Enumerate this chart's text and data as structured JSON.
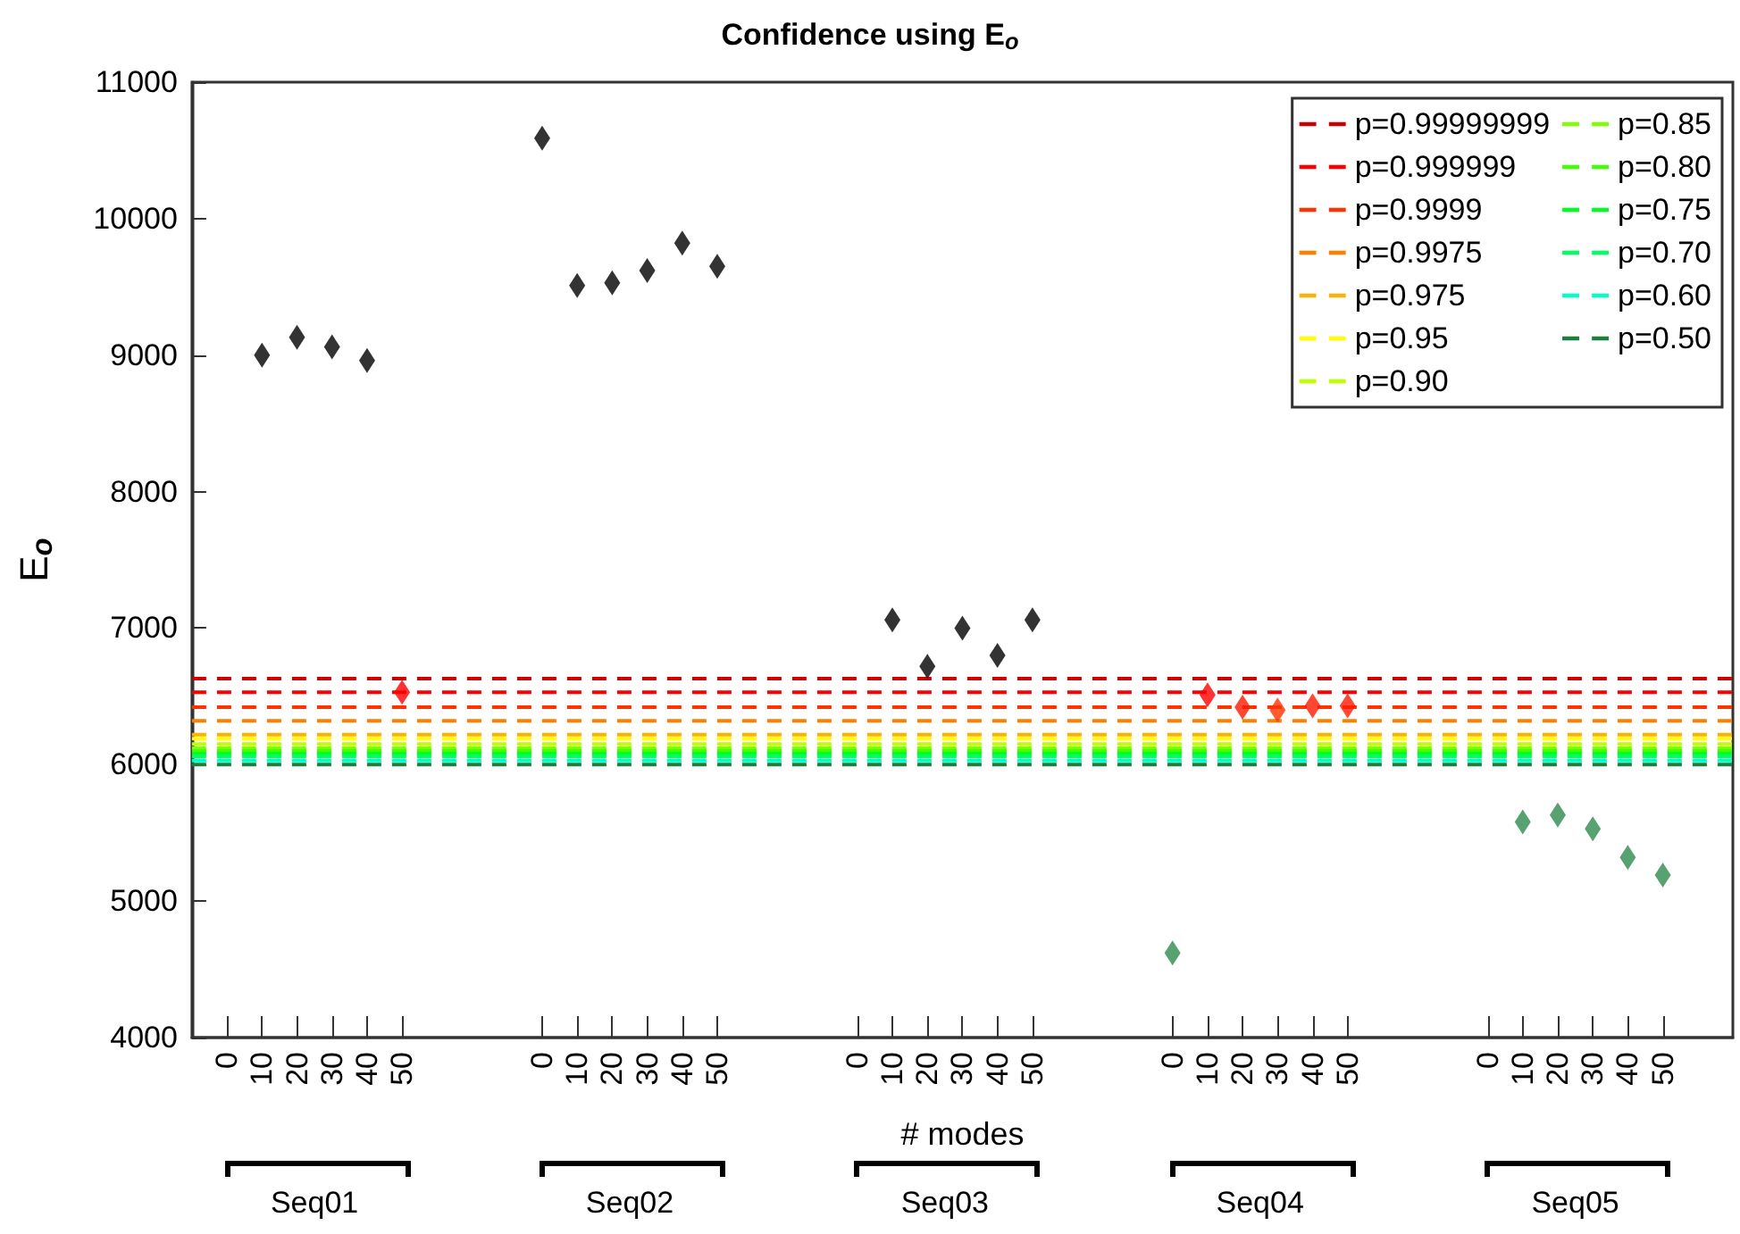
{
  "chart_data": {
    "type": "scatter",
    "title": "Confidence using E$_{o}$",
    "xlabel": "# modes",
    "ylabel": "E$_{o}$",
    "categories": [
      null,
      "0",
      "10",
      "20",
      "30",
      "40",
      "50",
      null,
      null,
      null,
      "0",
      "10",
      "20",
      "30",
      "40",
      "50",
      null,
      null,
      null,
      "0",
      "10",
      "20",
      "30",
      "40",
      "50",
      null,
      null,
      null,
      "0",
      "10",
      "20",
      "30",
      "40",
      "50",
      null,
      null,
      null,
      "0",
      "10",
      "20",
      "30",
      "40",
      "50",
      null,
      null
    ],
    "series": [
      {
        "marker": "diamond",
        "values": [
          null,
          null,
          9000,
          9130,
          9060,
          8960,
          6530,
          null,
          null,
          null,
          10590,
          9510,
          9530,
          9620,
          9820,
          9650,
          null,
          null,
          null,
          null,
          7060,
          6720,
          7000,
          6800,
          7060,
          null,
          null,
          null,
          4620,
          6510,
          6420,
          6400,
          6430,
          6430,
          null,
          null,
          null,
          null,
          5580,
          5630,
          5530,
          5320,
          5190,
          null,
          null
        ],
        "colors": [
          null,
          null,
          "#000000",
          "#000000",
          "#000000",
          "#000000",
          "#ff0000",
          null,
          null,
          null,
          "#000000",
          "#000000",
          "#000000",
          "#000000",
          "#000000",
          "#000000",
          null,
          null,
          null,
          null,
          "#000000",
          "#000000",
          "#000000",
          "#000000",
          "#000000",
          null,
          null,
          null,
          "#2e8b4e",
          "#ff0000",
          "#ff1a00",
          "#ff3300",
          "#ff1a00",
          "#ff1a00",
          null,
          null,
          null,
          null,
          "#2e8b4e",
          "#2e8b4e",
          "#2e8b4e",
          "#2e8b4e",
          "#2e8b4e",
          null,
          null
        ]
      },
      {
        "type": "line",
        "name": "p=0.99999999",
        "color": "#cc0000",
        "values": [
          6630,
          6630,
          6630,
          6630,
          6630,
          6630,
          6630,
          6630,
          6630,
          6630,
          6630,
          6630,
          6630,
          6630,
          6630,
          6630,
          6630,
          6630,
          6630,
          6630,
          6630,
          6630,
          6630,
          6630,
          6630,
          6630,
          6630,
          6630,
          6630,
          6630,
          6630,
          6630,
          6630,
          6630,
          6630,
          6630,
          6630,
          6630,
          6630,
          6630,
          6630,
          6630,
          6630,
          6630,
          6630
        ]
      },
      {
        "type": "line",
        "name": "p=0.999999",
        "color": "#ff0000",
        "values": [
          6530,
          6530,
          6530,
          6530,
          6530,
          6530,
          6530,
          6530,
          6530,
          6530,
          6530,
          6530,
          6530,
          6530,
          6530,
          6530,
          6530,
          6530,
          6530,
          6530,
          6530,
          6530,
          6530,
          6530,
          6530,
          6530,
          6530,
          6530,
          6530,
          6530,
          6530,
          6530,
          6530,
          6530,
          6530,
          6530,
          6530,
          6530,
          6530,
          6530,
          6530,
          6530,
          6530,
          6530,
          6530
        ]
      },
      {
        "type": "line",
        "name": "p=0.9999",
        "color": "#ff3300",
        "values": [
          6420,
          6420,
          6420,
          6420,
          6420,
          6420,
          6420,
          6420,
          6420,
          6420,
          6420,
          6420,
          6420,
          6420,
          6420,
          6420,
          6420,
          6420,
          6420,
          6420,
          6420,
          6420,
          6420,
          6420,
          6420,
          6420,
          6420,
          6420,
          6420,
          6420,
          6420,
          6420,
          6420,
          6420,
          6420,
          6420,
          6420,
          6420,
          6420,
          6420,
          6420,
          6420,
          6420,
          6420,
          6420
        ]
      },
      {
        "type": "line",
        "name": "p=0.9975",
        "color": "#ff8000",
        "values": [
          6320,
          6320,
          6320,
          6320,
          6320,
          6320,
          6320,
          6320,
          6320,
          6320,
          6320,
          6320,
          6320,
          6320,
          6320,
          6320,
          6320,
          6320,
          6320,
          6320,
          6320,
          6320,
          6320,
          6320,
          6320,
          6320,
          6320,
          6320,
          6320,
          6320,
          6320,
          6320,
          6320,
          6320,
          6320,
          6320,
          6320,
          6320,
          6320,
          6320,
          6320,
          6320,
          6320,
          6320,
          6320
        ]
      },
      {
        "type": "line",
        "name": "p=0.975",
        "color": "#ffb000",
        "values": [
          6220,
          6220,
          6220,
          6220,
          6220,
          6220,
          6220,
          6220,
          6220,
          6220,
          6220,
          6220,
          6220,
          6220,
          6220,
          6220,
          6220,
          6220,
          6220,
          6220,
          6220,
          6220,
          6220,
          6220,
          6220,
          6220,
          6220,
          6220,
          6220,
          6220,
          6220,
          6220,
          6220,
          6220,
          6220,
          6220,
          6220,
          6220,
          6220,
          6220,
          6220,
          6220,
          6220,
          6220,
          6220
        ]
      },
      {
        "type": "line",
        "name": "p=0.95",
        "color": "#ffff00",
        "values": [
          6190,
          6190,
          6190,
          6190,
          6190,
          6190,
          6190,
          6190,
          6190,
          6190,
          6190,
          6190,
          6190,
          6190,
          6190,
          6190,
          6190,
          6190,
          6190,
          6190,
          6190,
          6190,
          6190,
          6190,
          6190,
          6190,
          6190,
          6190,
          6190,
          6190,
          6190,
          6190,
          6190,
          6190,
          6190,
          6190,
          6190,
          6190,
          6190,
          6190,
          6190,
          6190,
          6190,
          6190,
          6190
        ]
      },
      {
        "type": "line",
        "name": "p=0.90",
        "color": "#bfff00",
        "values": [
          6150,
          6150,
          6150,
          6150,
          6150,
          6150,
          6150,
          6150,
          6150,
          6150,
          6150,
          6150,
          6150,
          6150,
          6150,
          6150,
          6150,
          6150,
          6150,
          6150,
          6150,
          6150,
          6150,
          6150,
          6150,
          6150,
          6150,
          6150,
          6150,
          6150,
          6150,
          6150,
          6150,
          6150,
          6150,
          6150,
          6150,
          6150,
          6150,
          6150,
          6150,
          6150,
          6150,
          6150,
          6150
        ]
      },
      {
        "type": "line",
        "name": "p=0.85",
        "color": "#80ff00",
        "values": [
          6120,
          6120,
          6120,
          6120,
          6120,
          6120,
          6120,
          6120,
          6120,
          6120,
          6120,
          6120,
          6120,
          6120,
          6120,
          6120,
          6120,
          6120,
          6120,
          6120,
          6120,
          6120,
          6120,
          6120,
          6120,
          6120,
          6120,
          6120,
          6120,
          6120,
          6120,
          6120,
          6120,
          6120,
          6120,
          6120,
          6120,
          6120,
          6120,
          6120,
          6120,
          6120,
          6120,
          6120,
          6120
        ]
      },
      {
        "type": "line",
        "name": "p=0.80",
        "color": "#40ff00",
        "values": [
          6100,
          6100,
          6100,
          6100,
          6100,
          6100,
          6100,
          6100,
          6100,
          6100,
          6100,
          6100,
          6100,
          6100,
          6100,
          6100,
          6100,
          6100,
          6100,
          6100,
          6100,
          6100,
          6100,
          6100,
          6100,
          6100,
          6100,
          6100,
          6100,
          6100,
          6100,
          6100,
          6100,
          6100,
          6100,
          6100,
          6100,
          6100,
          6100,
          6100,
          6100,
          6100,
          6100,
          6100,
          6100
        ]
      },
      {
        "type": "line",
        "name": "p=0.75",
        "color": "#00ff20",
        "values": [
          6080,
          6080,
          6080,
          6080,
          6080,
          6080,
          6080,
          6080,
          6080,
          6080,
          6080,
          6080,
          6080,
          6080,
          6080,
          6080,
          6080,
          6080,
          6080,
          6080,
          6080,
          6080,
          6080,
          6080,
          6080,
          6080,
          6080,
          6080,
          6080,
          6080,
          6080,
          6080,
          6080,
          6080,
          6080,
          6080,
          6080,
          6080,
          6080,
          6080,
          6080,
          6080,
          6080,
          6080,
          6080
        ]
      },
      {
        "type": "line",
        "name": "p=0.70",
        "color": "#00ff60",
        "values": [
          6060,
          6060,
          6060,
          6060,
          6060,
          6060,
          6060,
          6060,
          6060,
          6060,
          6060,
          6060,
          6060,
          6060,
          6060,
          6060,
          6060,
          6060,
          6060,
          6060,
          6060,
          6060,
          6060,
          6060,
          6060,
          6060,
          6060,
          6060,
          6060,
          6060,
          6060,
          6060,
          6060,
          6060,
          6060,
          6060,
          6060,
          6060,
          6060,
          6060,
          6060,
          6060,
          6060,
          6060,
          6060
        ]
      },
      {
        "type": "line",
        "name": "p=0.60",
        "color": "#00ffc0",
        "values": [
          6030,
          6030,
          6030,
          6030,
          6030,
          6030,
          6030,
          6030,
          6030,
          6030,
          6030,
          6030,
          6030,
          6030,
          6030,
          6030,
          6030,
          6030,
          6030,
          6030,
          6030,
          6030,
          6030,
          6030,
          6030,
          6030,
          6030,
          6030,
          6030,
          6030,
          6030,
          6030,
          6030,
          6030,
          6030,
          6030,
          6030,
          6030,
          6030,
          6030,
          6030,
          6030,
          6030,
          6030,
          6030
        ]
      },
      {
        "type": "line",
        "name": "p=0.50",
        "color": "#1a8040",
        "values": [
          6000,
          6000,
          6000,
          6000,
          6000,
          6000,
          6000,
          6000,
          6000,
          6000,
          6000,
          6000,
          6000,
          6000,
          6000,
          6000,
          6000,
          6000,
          6000,
          6000,
          6000,
          6000,
          6000,
          6000,
          6000,
          6000,
          6000,
          6000,
          6000,
          6000,
          6000,
          6000,
          6000,
          6000,
          6000,
          6000,
          6000,
          6000,
          6000,
          6000,
          6000,
          6000,
          6000,
          6000,
          6000
        ]
      }
    ],
    "ylim": [
      4000,
      11000
    ],
    "yticks": [
      4000,
      5000,
      6000,
      7000,
      8000,
      9000,
      10000,
      11000
    ],
    "annotations": [
      "Seq01",
      "Seq02",
      "Seq03",
      "Seq04",
      "Seq05"
    ],
    "line_style": "dashed",
    "grid": false,
    "legend": "top right"
  }
}
